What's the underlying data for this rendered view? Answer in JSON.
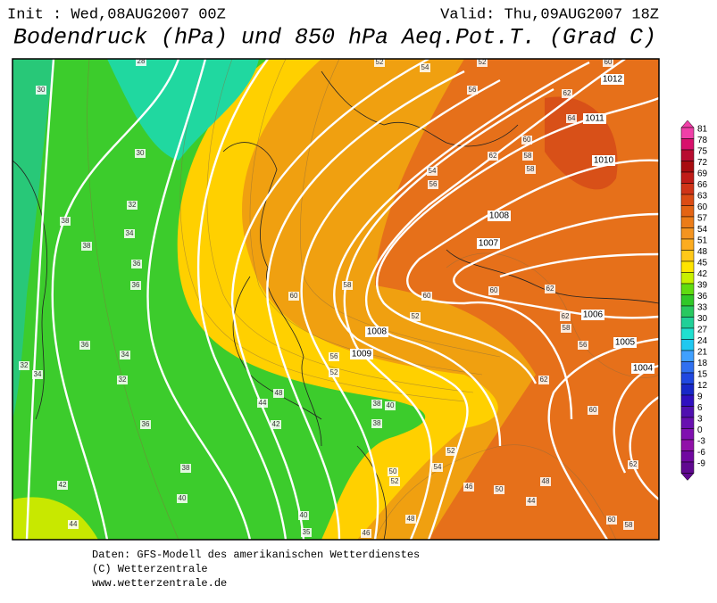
{
  "header": {
    "init": "Init : Wed,08AUG2007 00Z",
    "valid": "Valid: Thu,09AUG2007 18Z",
    "title": "Bodendruck (hPa) und 850 hPa Aeq.Pot.T. (Grad C)"
  },
  "map": {
    "isobar_labels": [
      1012,
      1011,
      1010,
      1008,
      1007,
      1006,
      1005,
      1004,
      1008,
      1009
    ],
    "theta_labels": [
      28,
      30,
      30,
      32,
      34,
      36,
      36,
      38,
      38,
      36,
      34,
      32,
      32,
      34,
      36,
      38,
      40,
      42,
      44,
      48,
      44,
      42,
      38,
      38,
      40,
      56,
      52,
      52,
      54,
      52,
      56,
      60,
      62,
      64,
      60,
      62,
      58,
      58,
      54,
      56,
      60,
      58,
      60,
      52,
      60,
      62,
      62,
      58,
      56,
      62,
      60,
      62,
      60,
      58,
      54,
      52,
      50,
      52,
      46,
      50,
      44,
      48,
      40,
      35,
      46,
      48
    ]
  },
  "colorbar": {
    "levels": [
      81,
      78,
      75,
      72,
      69,
      66,
      63,
      60,
      57,
      54,
      51,
      48,
      45,
      42,
      39,
      36,
      33,
      30,
      27,
      24,
      21,
      18,
      15,
      12,
      9,
      6,
      3,
      0,
      -3,
      -6,
      -9
    ],
    "colors": [
      "#f040a8",
      "#d8106c",
      "#b80c30",
      "#a80c10",
      "#c01c18",
      "#d03418",
      "#dc4c14",
      "#e46414",
      "#ec7c18",
      "#f49420",
      "#fcac20",
      "#ffc818",
      "#ffe400",
      "#c8f000",
      "#60dc10",
      "#30c828",
      "#28c860",
      "#20d098",
      "#20e0d0",
      "#20c8f0",
      "#40a0ff",
      "#3070f0",
      "#2048e0",
      "#1828c8",
      "#3010c0",
      "#5010b0",
      "#6810b0",
      "#8010b0",
      "#9010a8",
      "#7008a0",
      "#600890"
    ]
  },
  "footer": [
    "Daten: GFS-Modell des amerikanischen Wetterdienstes",
    "(C) Wetterzentrale",
    "www.wetterzentrale.de"
  ]
}
